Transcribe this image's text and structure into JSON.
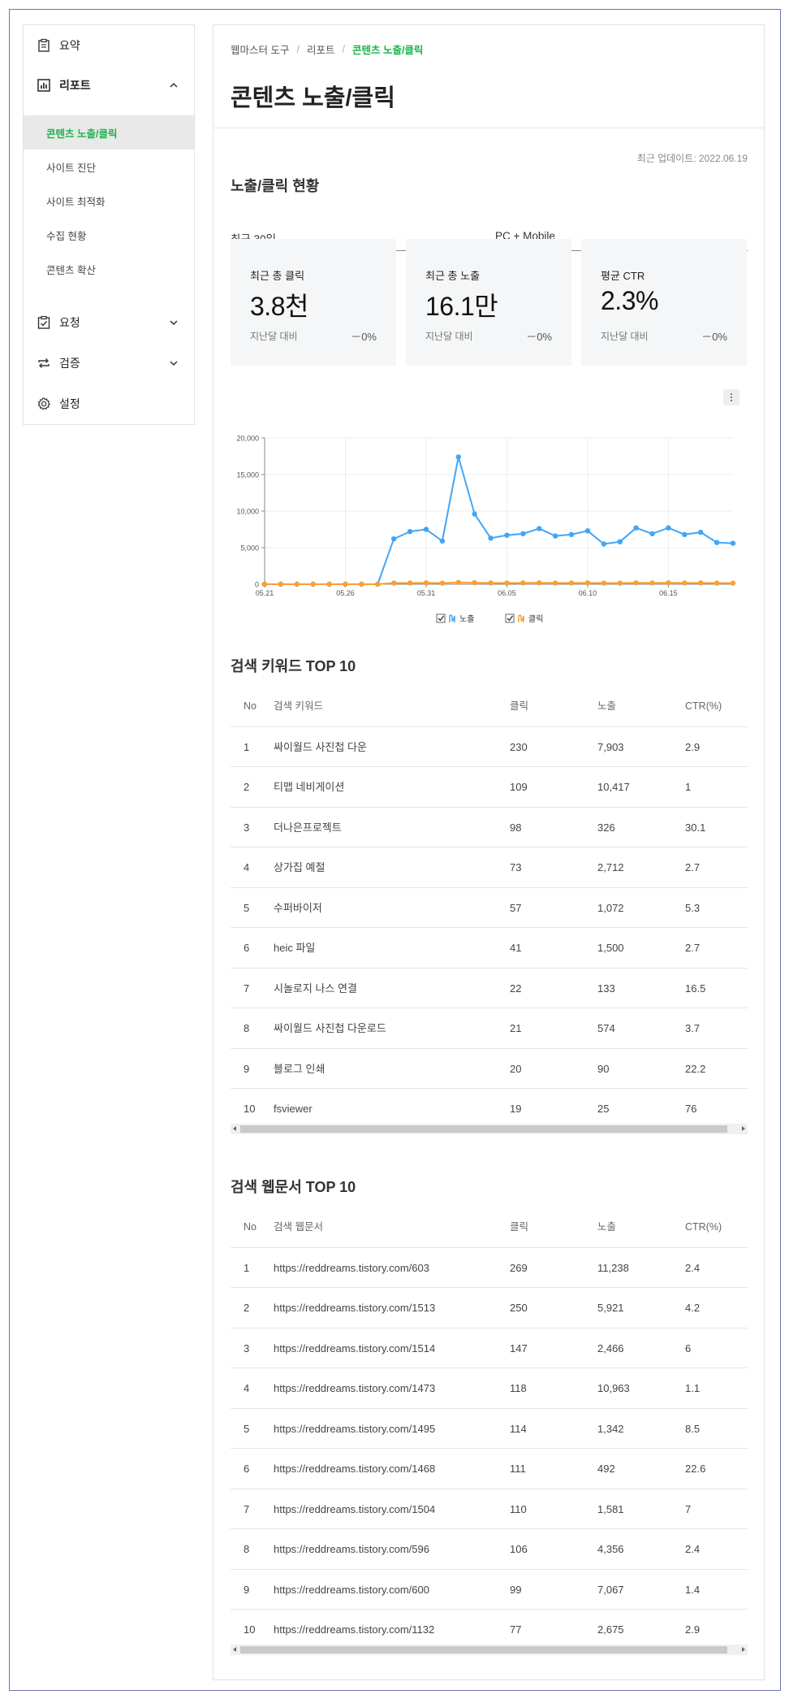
{
  "sidebar": {
    "items": [
      {
        "label": "요약",
        "icon": "clipboard-icon"
      },
      {
        "label": "리포트",
        "icon": "bar-chart-icon"
      },
      {
        "label": "요청",
        "icon": "checkbox-icon"
      },
      {
        "label": "검증",
        "icon": "repeat-icon"
      },
      {
        "label": "설정",
        "icon": "gear-icon"
      }
    ],
    "report_sub": [
      "콘텐츠 노출/클릭",
      "사이트 진단",
      "사이트 최적화",
      "수집 현황",
      "콘텐츠 확산"
    ]
  },
  "breadcrumb": [
    "웹마스터 도구",
    "리포트",
    "콘텐츠 노출/클릭"
  ],
  "page_title": "콘텐츠 노출/클릭",
  "last_update": "최근 업데이트: 2022.06.19",
  "overview": {
    "title": "노출/클릭 현황",
    "period_select": "최근 30일",
    "device_select": "PC + Mobile",
    "stats": [
      {
        "label": "최근 총 클릭",
        "value": "3.8천",
        "compare": "지난달 대비",
        "change": "－0%"
      },
      {
        "label": "최근 총 노출",
        "value": "16.1만",
        "compare": "지난달 대비",
        "change": "－0%"
      },
      {
        "label": "평균 CTR",
        "value": "2.3%",
        "compare": "지난달 대비",
        "change": "－0%"
      }
    ]
  },
  "chart_data": {
    "type": "line",
    "x": [
      "05.21",
      "05.22",
      "05.23",
      "05.24",
      "05.25",
      "05.26",
      "05.27",
      "05.28",
      "05.29",
      "05.30",
      "05.31",
      "06.01",
      "06.02",
      "06.03",
      "06.04",
      "06.05",
      "06.06",
      "06.07",
      "06.08",
      "06.09",
      "06.10",
      "06.11",
      "06.12",
      "06.13",
      "06.14",
      "06.15",
      "06.16",
      "06.17",
      "06.18",
      "06.19"
    ],
    "xticks": [
      "05.21",
      "05.26",
      "05.31",
      "06.05",
      "06.10",
      "06.15"
    ],
    "yticks": [
      "0",
      "5,000",
      "10,000",
      "15,000",
      "20,000"
    ],
    "ylim": [
      0,
      20000
    ],
    "series": [
      {
        "name": "노출",
        "color": "#42a5f5",
        "values": [
          0,
          0,
          0,
          0,
          0,
          0,
          0,
          0,
          6200,
          7200,
          7500,
          5900,
          17400,
          9600,
          6300,
          6700,
          6900,
          7600,
          6600,
          6800,
          7300,
          5500,
          5800,
          7700,
          6900,
          7700,
          6800,
          7100,
          5700,
          5600
        ]
      },
      {
        "name": "클릭",
        "color": "#f7a035",
        "values": [
          0,
          0,
          0,
          0,
          0,
          0,
          0,
          0,
          160,
          170,
          180,
          150,
          250,
          200,
          170,
          160,
          180,
          190,
          160,
          170,
          180,
          150,
          150,
          190,
          170,
          190,
          170,
          180,
          150,
          150
        ]
      }
    ],
    "legend": "bottom-center",
    "grid": true
  },
  "keywords": {
    "title": "검색 키워드 TOP 10",
    "headers": [
      "No",
      "검색 키워드",
      "클릭",
      "노출",
      "CTR(%)"
    ],
    "rows": [
      [
        "1",
        "싸이월드 사진첩 다운",
        "230",
        "7,903",
        "2.9"
      ],
      [
        "2",
        "티맵 네비게이션",
        "109",
        "10,417",
        "1"
      ],
      [
        "3",
        "더나은프로젝트",
        "98",
        "326",
        "30.1"
      ],
      [
        "4",
        "상가집 예절",
        "73",
        "2,712",
        "2.7"
      ],
      [
        "5",
        "수퍼바이저",
        "57",
        "1,072",
        "5.3"
      ],
      [
        "6",
        "heic 파일",
        "41",
        "1,500",
        "2.7"
      ],
      [
        "7",
        "시놀로지 나스 연결",
        "22",
        "133",
        "16.5"
      ],
      [
        "8",
        "싸이월드 사진첩 다운로드",
        "21",
        "574",
        "3.7"
      ],
      [
        "9",
        "블로그 인쇄",
        "20",
        "90",
        "22.2"
      ],
      [
        "10",
        "fsviewer",
        "19",
        "25",
        "76"
      ]
    ]
  },
  "documents": {
    "title": "검색 웹문서 TOP 10",
    "headers": [
      "No",
      "검색 웹문서",
      "클릭",
      "노출",
      "CTR(%)"
    ],
    "rows": [
      [
        "1",
        "https://reddreams.tistory.com/603",
        "269",
        "11,238",
        "2.4"
      ],
      [
        "2",
        "https://reddreams.tistory.com/1513",
        "250",
        "5,921",
        "4.2"
      ],
      [
        "3",
        "https://reddreams.tistory.com/1514",
        "147",
        "2,466",
        "6"
      ],
      [
        "4",
        "https://reddreams.tistory.com/1473",
        "118",
        "10,963",
        "1.1"
      ],
      [
        "5",
        "https://reddreams.tistory.com/1495",
        "114",
        "1,342",
        "8.5"
      ],
      [
        "6",
        "https://reddreams.tistory.com/1468",
        "111",
        "492",
        "22.6"
      ],
      [
        "7",
        "https://reddreams.tistory.com/1504",
        "110",
        "1,581",
        "7"
      ],
      [
        "8",
        "https://reddreams.tistory.com/596",
        "106",
        "4,356",
        "2.4"
      ],
      [
        "9",
        "https://reddreams.tistory.com/600",
        "99",
        "7,067",
        "1.4"
      ],
      [
        "10",
        "https://reddreams.tistory.com/1132",
        "77",
        "2,675",
        "2.9"
      ]
    ]
  }
}
